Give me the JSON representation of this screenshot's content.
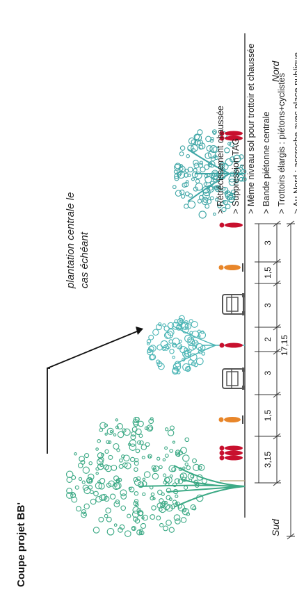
{
  "title": "Coupe projet BB'",
  "bullets": [
    "> Rétrécissement chaussée",
    "> Suppression TAG",
    "> Même niveau sol pour trottoir et chaussée",
    "> Bande piétonne centrale",
    "> Trottoirs élargis : piétons+cyclistes",
    "> Au Nord : accroche avec place publique"
  ],
  "annotation": {
    "line1": "plantation centrale le",
    "line2": "cas échéant"
  },
  "labels": {
    "south": "Sud",
    "north": "Nord"
  },
  "dimensions": {
    "segments": [
      "3,15",
      "1,5",
      "3",
      "2",
      "3",
      "1,5",
      "3"
    ],
    "total": "17,15"
  },
  "colors": {
    "tree_large": "#3daa86",
    "tree_medium": "#4bb5b5",
    "tree_north": "#3fa6a6",
    "pedestrian": "#c8102e",
    "cyclist": "#e8862a",
    "vehicle": "#555555",
    "lines": "#333333"
  }
}
